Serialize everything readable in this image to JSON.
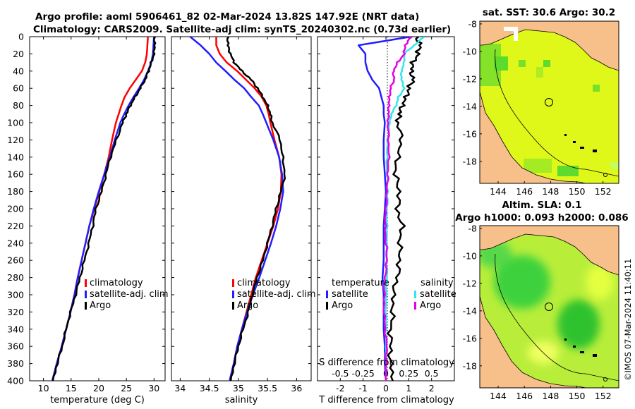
{
  "colors": {
    "climatology": "#ff0000",
    "satellite": "#1f1fff",
    "argo": "#000000",
    "cyan": "#33e6f0",
    "magenta": "#e600e6",
    "land": "#f7c08a",
    "ocean_yellow": "#dff81a",
    "ocean_green": "#3cd23c"
  },
  "title": {
    "line1": "Argo profile: aoml 5906461_82 02-Mar-2024 13.82S 147.92E (NRT data)",
    "line2": "Climatology: CARS2009. Satellite-adj clim: synTS_20240302.nc (0.73d earlier)"
  },
  "depth_ticks": [
    "0",
    "20",
    "40",
    "60",
    "80",
    "100",
    "120",
    "140",
    "160",
    "180",
    "200",
    "220",
    "240",
    "260",
    "280",
    "300",
    "320",
    "340",
    "360",
    "380",
    "400"
  ],
  "chart_data": [
    {
      "type": "line",
      "name": "temperature",
      "xlabel": "temperature (deg C)",
      "xlim": [
        7.5,
        32
      ],
      "xticks": [
        "10",
        "15",
        "20",
        "25",
        "30"
      ],
      "ylim": [
        0,
        400
      ],
      "y_reversed": true,
      "depth": [
        0,
        10,
        20,
        30,
        40,
        50,
        60,
        70,
        80,
        90,
        100,
        120,
        140,
        160,
        180,
        200,
        220,
        240,
        260,
        280,
        300,
        320,
        340,
        360,
        380,
        400
      ],
      "legend": [
        "climatology",
        "satellite-adj. clim",
        "Argo"
      ],
      "series": [
        {
          "name": "climatology",
          "values": [
            28.9,
            28.8,
            28.7,
            28.4,
            27.8,
            26.7,
            25.6,
            24.7,
            24.1,
            23.6,
            23.1,
            22.4,
            21.8,
            21.0,
            20.1,
            19.2,
            18.3,
            17.6,
            16.9,
            16.2,
            15.6,
            14.9,
            14.1,
            13.3,
            12.4,
            11.6
          ]
        },
        {
          "name": "satellite-adj. clim",
          "values": [
            30.0,
            29.9,
            29.8,
            29.5,
            28.9,
            28.2,
            27.3,
            26.3,
            25.4,
            24.6,
            23.9,
            22.9,
            22.0,
            21.0,
            20.0,
            19.1,
            18.3,
            17.6,
            16.9,
            16.2,
            15.6,
            14.9,
            14.1,
            13.3,
            12.4,
            11.6
          ]
        },
        {
          "name": "Argo",
          "values": [
            30.1,
            30.1,
            30.0,
            29.5,
            29.0,
            28.4,
            27.5,
            26.6,
            25.7,
            25.0,
            24.3,
            23.2,
            22.1,
            21.3,
            20.5,
            19.5,
            18.9,
            18.2,
            17.4,
            16.6,
            15.8,
            14.9,
            14.1,
            13.4,
            12.5,
            11.7
          ]
        }
      ]
    },
    {
      "type": "line",
      "name": "salinity",
      "xlabel": "salinity",
      "xlim": [
        33.85,
        36.25
      ],
      "xticks": [
        "34",
        "34.5",
        "35",
        "35.5",
        "36"
      ],
      "ylim": [
        0,
        400
      ],
      "y_reversed": true,
      "depth": [
        0,
        10,
        20,
        30,
        40,
        50,
        60,
        70,
        80,
        90,
        100,
        120,
        140,
        160,
        180,
        200,
        220,
        240,
        260,
        280,
        300,
        320,
        340,
        360,
        380,
        400
      ],
      "legend": [
        "climatology",
        "satellite-adj. clim",
        "Argo"
      ],
      "series": [
        {
          "name": "climatology",
          "values": [
            34.62,
            34.62,
            34.68,
            34.8,
            34.98,
            35.13,
            35.28,
            35.4,
            35.48,
            35.52,
            35.55,
            35.62,
            35.7,
            35.74,
            35.73,
            35.68,
            35.6,
            35.5,
            35.4,
            35.3,
            35.22,
            35.14,
            35.06,
            34.98,
            34.92,
            34.85
          ]
        },
        {
          "name": "satellite-adj. clim",
          "values": [
            34.17,
            34.35,
            34.5,
            34.62,
            34.78,
            34.93,
            35.1,
            35.22,
            35.35,
            35.42,
            35.48,
            35.6,
            35.7,
            35.75,
            35.77,
            35.72,
            35.65,
            35.56,
            35.46,
            35.36,
            35.25,
            35.15,
            35.06,
            34.98,
            34.92,
            34.85
          ]
        },
        {
          "name": "Argo",
          "values": [
            34.82,
            34.82,
            34.86,
            34.93,
            35.06,
            35.22,
            35.33,
            35.42,
            35.5,
            35.55,
            35.58,
            35.72,
            35.76,
            35.8,
            35.73,
            35.65,
            35.58,
            35.5,
            35.42,
            35.32,
            35.24,
            35.17,
            35.08,
            35.0,
            34.93,
            34.87
          ]
        }
      ]
    },
    {
      "type": "line",
      "name": "difference",
      "xlabel": "T difference from climatology",
      "xlabel_top": "S difference from climatology",
      "xlim": [
        -3,
        3
      ],
      "xticks": [
        "-2",
        "-1",
        "0",
        "1",
        "2"
      ],
      "xticks_top": [
        "-0.5",
        "-0.25",
        "0",
        "0.25",
        "0.5"
      ],
      "ylim": [
        0,
        400
      ],
      "y_reversed": true,
      "depth": [
        0,
        10,
        20,
        30,
        40,
        50,
        60,
        70,
        80,
        90,
        100,
        120,
        140,
        160,
        180,
        200,
        220,
        240,
        260,
        280,
        300,
        320,
        340,
        360,
        380,
        400
      ],
      "legend_temperature_header": "temperature",
      "legend_salinity_header": "salinity",
      "legend_temperature": [
        "satellite",
        "Argo"
      ],
      "legend_salinity": [
        "satellite",
        "Argo"
      ],
      "series": [
        {
          "name": "T satellite",
          "values": [
            1.1,
            -1.2,
            -0.9,
            -0.9,
            -0.8,
            -0.6,
            -0.3,
            -0.2,
            -0.1,
            -0.1,
            -0.05,
            -0.1,
            -0.1,
            -0.05,
            0.0,
            -0.05,
            -0.1,
            -0.1,
            -0.1,
            -0.15,
            -0.1,
            -0.1,
            -0.1,
            -0.05,
            -0.05,
            0.0
          ]
        },
        {
          "name": "T Argo",
          "values": [
            1.35,
            1.5,
            1.4,
            1.2,
            1.1,
            1.2,
            1.0,
            0.9,
            0.7,
            0.6,
            0.5,
            0.7,
            0.5,
            0.4,
            0.6,
            0.5,
            0.7,
            0.6,
            0.6,
            0.5,
            0.3,
            0.3,
            0.2,
            0.2,
            0.2,
            0.3
          ]
        },
        {
          "name": "S satellite",
          "values": [
            0.42,
            0.31,
            0.2,
            0.2,
            0.17,
            0.17,
            0.2,
            0.14,
            0.11,
            0.06,
            0.04,
            0.02,
            0.01,
            0.01,
            0.02,
            0.01,
            0.01,
            0.01,
            0.01,
            0.01,
            0.0,
            0.0,
            0.0,
            0.0,
            0.0,
            0.0
          ]
        },
        {
          "name": "S Argo",
          "values": [
            0.28,
            0.21,
            0.2,
            0.13,
            0.08,
            0.09,
            0.05,
            0.04,
            0.03,
            0.03,
            0.02,
            0.03,
            0.03,
            0.02,
            0.01,
            0.0,
            -0.01,
            0.0,
            0.01,
            -0.01,
            -0.02,
            -0.02,
            -0.01,
            0.01,
            0.0,
            0.0
          ]
        }
      ]
    }
  ],
  "maps": [
    {
      "title": "sat. SST: 30.6 Argo: 30.2",
      "xticks": [
        "144",
        "146",
        "148",
        "150",
        "152"
      ],
      "yticks": [
        "-8",
        "-10",
        "-12",
        "-14",
        "-16",
        "-18"
      ]
    },
    {
      "title_line1": "Altim. SLA: 0.1",
      "title_line2": "Argo h1000: 0.093 h2000: 0.086",
      "xticks": [
        "144",
        "146",
        "148",
        "150",
        "152"
      ],
      "yticks": [
        "-8",
        "-10",
        "-12",
        "-14",
        "-16",
        "-18"
      ]
    }
  ],
  "copyright": "©IMOS 07-Mar-2024 11:40:11"
}
